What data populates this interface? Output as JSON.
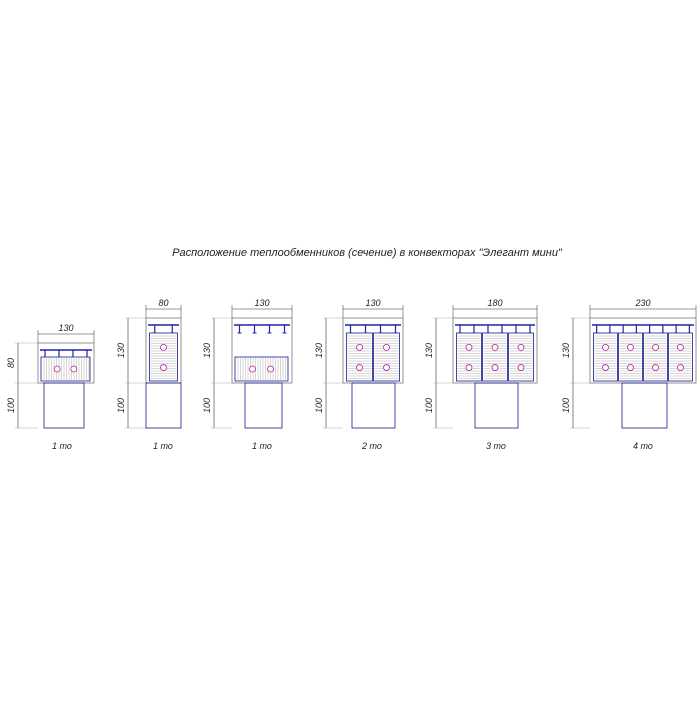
{
  "title": "Расположение теплообменников (сечение) в конвекторах \"Элегант мини\"",
  "figures": [
    {
      "width": "130",
      "height": "80",
      "depth": "100",
      "caption": "1 то"
    },
    {
      "width": "80",
      "height": "130",
      "depth": "100",
      "caption": "1 то"
    },
    {
      "width": "130",
      "height": "130",
      "depth": "100",
      "caption": "1 то"
    },
    {
      "width": "130",
      "height": "130",
      "depth": "100",
      "caption": "2 то"
    },
    {
      "width": "180",
      "height": "130",
      "depth": "100",
      "caption": "3 то"
    },
    {
      "width": "230",
      "height": "130",
      "depth": "100",
      "caption": "4 то"
    }
  ]
}
